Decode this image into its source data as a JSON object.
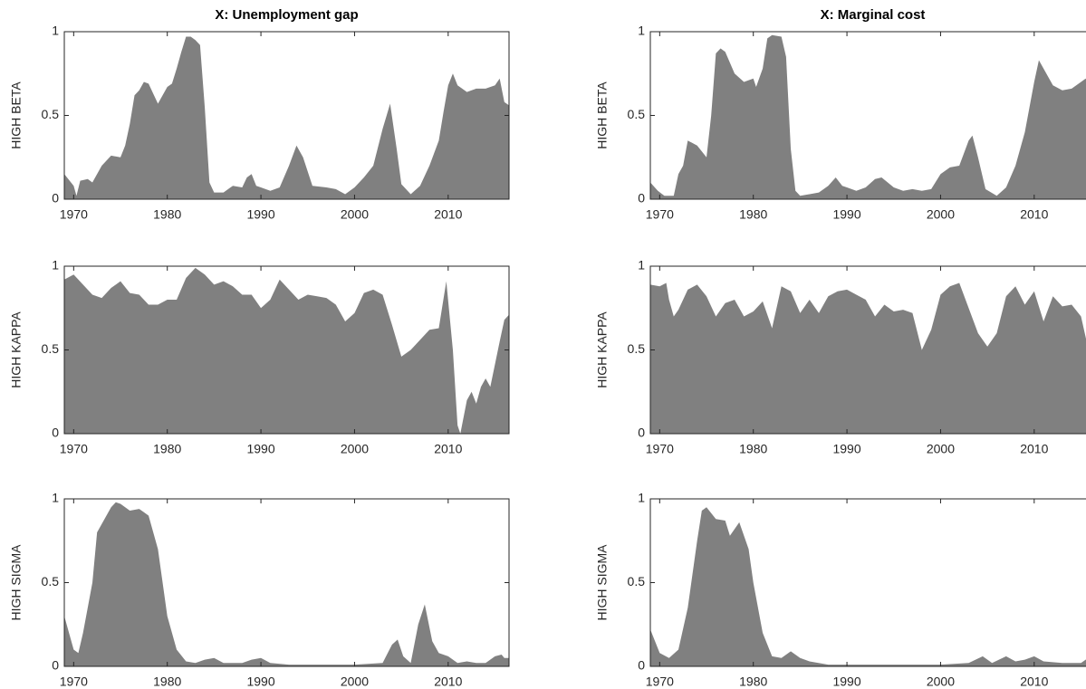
{
  "chart_data": [
    {
      "type": "area",
      "title": "X: Unemployment gap",
      "ylabel": "HIGH BETA",
      "color": "#808080",
      "x": [
        1969,
        1970,
        1970.3,
        1970.7,
        1971.5,
        1972,
        1973,
        1974,
        1975,
        1975.5,
        1976,
        1976.5,
        1977,
        1977.5,
        1978,
        1978.5,
        1979,
        1979.5,
        1980,
        1980.5,
        1981,
        1981.5,
        1982,
        1982.5,
        1983,
        1983.5,
        1984,
        1984.5,
        1985,
        1986,
        1987,
        1988,
        1988.5,
        1989,
        1989.5,
        1990,
        1991,
        1992,
        1993,
        1993.8,
        1994.5,
        1995.5,
        1997,
        1998,
        1999,
        2000,
        2001,
        2002,
        2003,
        2003.8,
        2004.5,
        2005,
        2006,
        2007,
        2008,
        2009,
        2009.5,
        2010,
        2010.5,
        2011,
        2012,
        2013,
        2014,
        2015,
        2015.5,
        2016,
        2016.5
      ],
      "values": [
        0.15,
        0.08,
        0.02,
        0.11,
        0.12,
        0.1,
        0.2,
        0.26,
        0.25,
        0.32,
        0.45,
        0.62,
        0.65,
        0.7,
        0.69,
        0.63,
        0.57,
        0.62,
        0.67,
        0.69,
        0.78,
        0.88,
        0.97,
        0.97,
        0.95,
        0.92,
        0.55,
        0.1,
        0.04,
        0.04,
        0.08,
        0.07,
        0.13,
        0.15,
        0.08,
        0.07,
        0.05,
        0.07,
        0.2,
        0.32,
        0.25,
        0.08,
        0.07,
        0.06,
        0.03,
        0.07,
        0.13,
        0.2,
        0.42,
        0.57,
        0.3,
        0.09,
        0.03,
        0.08,
        0.2,
        0.35,
        0.52,
        0.68,
        0.75,
        0.68,
        0.64,
        0.66,
        0.66,
        0.68,
        0.72,
        0.58,
        0.56
      ],
      "xlim": [
        1969,
        2016.5
      ],
      "ylim": [
        0,
        1
      ],
      "xticks": [
        1970,
        1980,
        1990,
        2000,
        2010
      ],
      "yticks": [
        0,
        0.5,
        1
      ]
    },
    {
      "type": "area",
      "title": "X: Marginal cost",
      "ylabel": "HIGH BETA",
      "color": "#808080",
      "x": [
        1969,
        1969.8,
        1970.5,
        1971.5,
        1972,
        1972.5,
        1973,
        1974,
        1975,
        1975.5,
        1976,
        1976.5,
        1977,
        1978,
        1979,
        1980,
        1980.3,
        1981,
        1981.5,
        1982,
        1983,
        1983.5,
        1984,
        1984.5,
        1985,
        1986,
        1987,
        1988,
        1988.8,
        1989.5,
        1990,
        1991,
        1992,
        1993,
        1993.7,
        1995,
        1996,
        1997,
        1998,
        1999,
        2000,
        2001,
        2002,
        2003,
        2003.4,
        2004,
        2004.8,
        2006,
        2007,
        2008,
        2009,
        2010,
        2010.5,
        2011,
        2012,
        2013,
        2014,
        2015,
        2015.5,
        2016,
        2016.5
      ],
      "values": [
        0.1,
        0.05,
        0.02,
        0.02,
        0.15,
        0.2,
        0.35,
        0.32,
        0.25,
        0.5,
        0.87,
        0.9,
        0.88,
        0.75,
        0.7,
        0.72,
        0.67,
        0.78,
        0.96,
        0.98,
        0.97,
        0.85,
        0.3,
        0.05,
        0.02,
        0.03,
        0.04,
        0.08,
        0.13,
        0.08,
        0.07,
        0.05,
        0.07,
        0.12,
        0.13,
        0.07,
        0.05,
        0.06,
        0.05,
        0.06,
        0.15,
        0.19,
        0.2,
        0.35,
        0.38,
        0.25,
        0.06,
        0.02,
        0.07,
        0.2,
        0.4,
        0.7,
        0.83,
        0.78,
        0.68,
        0.65,
        0.66,
        0.7,
        0.72,
        0.65,
        0.6
      ],
      "xlim": [
        1969,
        2016.5
      ],
      "ylim": [
        0,
        1
      ],
      "xticks": [
        1970,
        1980,
        1990,
        2000,
        2010
      ],
      "yticks": [
        0,
        0.5,
        1
      ]
    },
    {
      "type": "area",
      "ylabel": "HIGH KAPPA",
      "color": "#808080",
      "x": [
        1969,
        1970,
        1971,
        1972,
        1973,
        1974,
        1975,
        1976,
        1977,
        1978,
        1979,
        1980,
        1981,
        1982,
        1983,
        1984,
        1985,
        1986,
        1987,
        1988,
        1989,
        1990,
        1991,
        1992,
        1993,
        1994,
        1995,
        1996,
        1997,
        1998,
        1999,
        2000,
        2001,
        2002,
        2003,
        2004,
        2005,
        2006,
        2007,
        2008,
        2009,
        2009.8,
        2010.5,
        2011,
        2011.3,
        2012,
        2012.5,
        2013,
        2013.5,
        2014,
        2014.5,
        2015.5,
        2016,
        2016.5
      ],
      "values": [
        0.92,
        0.95,
        0.89,
        0.83,
        0.81,
        0.87,
        0.91,
        0.84,
        0.83,
        0.77,
        0.77,
        0.8,
        0.8,
        0.93,
        0.99,
        0.95,
        0.89,
        0.91,
        0.88,
        0.83,
        0.83,
        0.75,
        0.8,
        0.92,
        0.86,
        0.8,
        0.83,
        0.82,
        0.81,
        0.77,
        0.67,
        0.72,
        0.84,
        0.86,
        0.83,
        0.65,
        0.46,
        0.5,
        0.56,
        0.62,
        0.63,
        0.91,
        0.5,
        0.05,
        0.0,
        0.2,
        0.25,
        0.18,
        0.28,
        0.33,
        0.28,
        0.55,
        0.68,
        0.71
      ],
      "xlim": [
        1969,
        2016.5
      ],
      "ylim": [
        0,
        1
      ],
      "xticks": [
        1970,
        1980,
        1990,
        2000,
        2010
      ],
      "yticks": [
        0,
        0.5,
        1
      ]
    },
    {
      "type": "area",
      "ylabel": "HIGH KAPPA",
      "color": "#808080",
      "x": [
        1969,
        1970,
        1970.7,
        1971,
        1971.5,
        1972,
        1973,
        1974,
        1975,
        1976,
        1977,
        1978,
        1979,
        1980,
        1981,
        1982,
        1983,
        1984,
        1985,
        1986,
        1987,
        1988,
        1989,
        1990,
        1991,
        1992,
        1993,
        1994,
        1995,
        1996,
        1997,
        1998,
        1999,
        2000,
        2001,
        2002,
        2003,
        2004,
        2005,
        2006,
        2007,
        2008,
        2009,
        2010,
        2011,
        2012,
        2013,
        2014,
        2015,
        2016,
        2016.5
      ],
      "values": [
        0.89,
        0.88,
        0.9,
        0.8,
        0.7,
        0.74,
        0.86,
        0.89,
        0.82,
        0.7,
        0.78,
        0.8,
        0.7,
        0.73,
        0.79,
        0.63,
        0.88,
        0.85,
        0.72,
        0.8,
        0.72,
        0.82,
        0.85,
        0.86,
        0.83,
        0.8,
        0.7,
        0.77,
        0.73,
        0.74,
        0.72,
        0.5,
        0.62,
        0.83,
        0.88,
        0.9,
        0.75,
        0.6,
        0.52,
        0.6,
        0.82,
        0.88,
        0.77,
        0.85,
        0.67,
        0.82,
        0.76,
        0.77,
        0.7,
        0.45,
        0.42
      ],
      "xlim": [
        1969,
        2016.5
      ],
      "ylim": [
        0,
        1
      ],
      "xticks": [
        1970,
        1980,
        1990,
        2000,
        2010
      ],
      "yticks": [
        0,
        0.5,
        1
      ]
    },
    {
      "type": "area",
      "ylabel": "HIGH SIGMA",
      "color": "#808080",
      "x": [
        1969,
        1970,
        1970.5,
        1971,
        1972,
        1972.5,
        1973,
        1974,
        1974.5,
        1975,
        1976,
        1977,
        1977.5,
        1978,
        1979,
        1980,
        1981,
        1982,
        1983,
        1984,
        1985,
        1986,
        1988,
        1989,
        1990,
        1991,
        1993,
        1995,
        1998,
        2000,
        2003,
        2004,
        2004.6,
        2005.2,
        2006,
        2006.8,
        2007.5,
        2008.3,
        2009,
        2010,
        2011,
        2012,
        2013,
        2014,
        2015,
        2015.7,
        2016,
        2016.5
      ],
      "values": [
        0.3,
        0.1,
        0.08,
        0.2,
        0.5,
        0.8,
        0.85,
        0.95,
        0.98,
        0.97,
        0.93,
        0.94,
        0.92,
        0.9,
        0.7,
        0.3,
        0.1,
        0.03,
        0.02,
        0.04,
        0.05,
        0.02,
        0.02,
        0.04,
        0.05,
        0.02,
        0.01,
        0.01,
        0.01,
        0.01,
        0.02,
        0.13,
        0.16,
        0.06,
        0.02,
        0.25,
        0.37,
        0.15,
        0.08,
        0.06,
        0.02,
        0.03,
        0.02,
        0.02,
        0.06,
        0.07,
        0.05,
        0.05
      ],
      "xlim": [
        1969,
        2016.5
      ],
      "ylim": [
        0,
        1
      ],
      "xticks": [
        1970,
        1980,
        1990,
        2000,
        2010
      ],
      "yticks": [
        0,
        0.5,
        1
      ]
    },
    {
      "type": "area",
      "ylabel": "HIGH SIGMA",
      "color": "#808080",
      "x": [
        1969,
        1970,
        1971,
        1972,
        1973,
        1974,
        1974.5,
        1975,
        1976,
        1977,
        1977.5,
        1978.5,
        1979.5,
        1980,
        1981,
        1982,
        1983,
        1984,
        1985,
        1986,
        1988,
        1990,
        1995,
        2000,
        2003,
        2004.5,
        2005.5,
        2007,
        2008,
        2009,
        2010,
        2011,
        2013,
        2015,
        2016,
        2016.5
      ],
      "values": [
        0.22,
        0.08,
        0.05,
        0.1,
        0.35,
        0.75,
        0.93,
        0.95,
        0.88,
        0.87,
        0.78,
        0.86,
        0.7,
        0.5,
        0.2,
        0.06,
        0.05,
        0.09,
        0.05,
        0.03,
        0.01,
        0.01,
        0.01,
        0.01,
        0.02,
        0.06,
        0.02,
        0.06,
        0.03,
        0.04,
        0.06,
        0.03,
        0.02,
        0.02,
        0.06,
        0.07
      ],
      "xlim": [
        1969,
        2016.5
      ],
      "ylim": [
        0,
        1
      ],
      "xticks": [
        1970,
        1980,
        1990,
        2000,
        2010
      ],
      "yticks": [
        0,
        0.5,
        1
      ]
    }
  ]
}
